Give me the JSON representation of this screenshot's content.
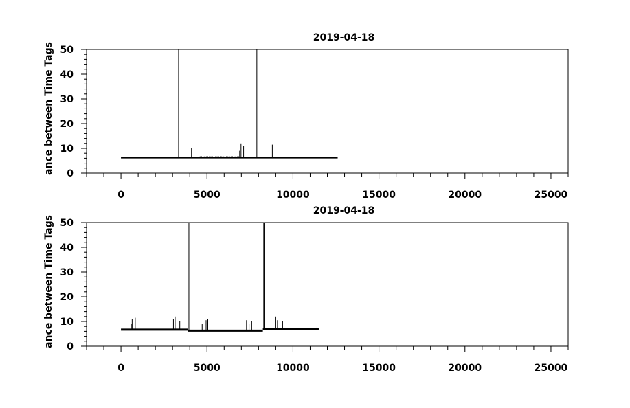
{
  "chart_data": [
    {
      "type": "line",
      "title": "2019-04-18",
      "xlabel": "",
      "ylabel": "ance between Time Tags",
      "xlim": [
        -2000,
        26000
      ],
      "ylim": [
        0,
        50
      ],
      "x_ticks": [
        0,
        5000,
        10000,
        15000,
        20000,
        25000
      ],
      "y_ticks": [
        0,
        10,
        20,
        30,
        40,
        50
      ],
      "grid": false,
      "baseline": {
        "value": 6.2,
        "x_range": [
          0,
          12600
        ]
      },
      "spikes": [
        {
          "x": 3350,
          "y": 50
        },
        {
          "x": 4100,
          "y": 10
        },
        {
          "x": 6900,
          "y": 9
        },
        {
          "x": 6980,
          "y": 12
        },
        {
          "x": 7130,
          "y": 11
        },
        {
          "x": 7900,
          "y": 50
        },
        {
          "x": 8800,
          "y": 11.5
        }
      ]
    },
    {
      "type": "line",
      "title": "2019-04-18",
      "xlabel": "",
      "ylabel": "ance between Time Tags",
      "xlim": [
        -2000,
        26000
      ],
      "ylim": [
        0,
        50
      ],
      "x_ticks": [
        0,
        5000,
        10000,
        15000,
        20000,
        25000
      ],
      "y_ticks": [
        0,
        10,
        20,
        30,
        40,
        50
      ],
      "grid": false,
      "baseline_segments": [
        {
          "x_range": [
            0,
            3900
          ],
          "value": 6.7
        },
        {
          "x_range": [
            3900,
            8250
          ],
          "value": 6.3
        },
        {
          "x_range": [
            8250,
            11500
          ],
          "value": 6.8
        }
      ],
      "spikes": [
        {
          "x": 600,
          "y": 9
        },
        {
          "x": 650,
          "y": 11
        },
        {
          "x": 830,
          "y": 11.5
        },
        {
          "x": 3050,
          "y": 11
        },
        {
          "x": 3150,
          "y": 12
        },
        {
          "x": 3420,
          "y": 10
        },
        {
          "x": 3950,
          "y": 50
        },
        {
          "x": 4650,
          "y": 11.5
        },
        {
          "x": 4720,
          "y": 9
        },
        {
          "x": 4950,
          "y": 10.5
        },
        {
          "x": 5050,
          "y": 11
        },
        {
          "x": 7300,
          "y": 10.5
        },
        {
          "x": 7450,
          "y": 9
        },
        {
          "x": 7600,
          "y": 10
        },
        {
          "x": 8300,
          "y": 50
        },
        {
          "x": 8330,
          "y": 50
        },
        {
          "x": 8360,
          "y": 50
        },
        {
          "x": 9000,
          "y": 12
        },
        {
          "x": 9100,
          "y": 10.5
        },
        {
          "x": 9400,
          "y": 10
        },
        {
          "x": 11400,
          "y": 8
        }
      ]
    }
  ]
}
